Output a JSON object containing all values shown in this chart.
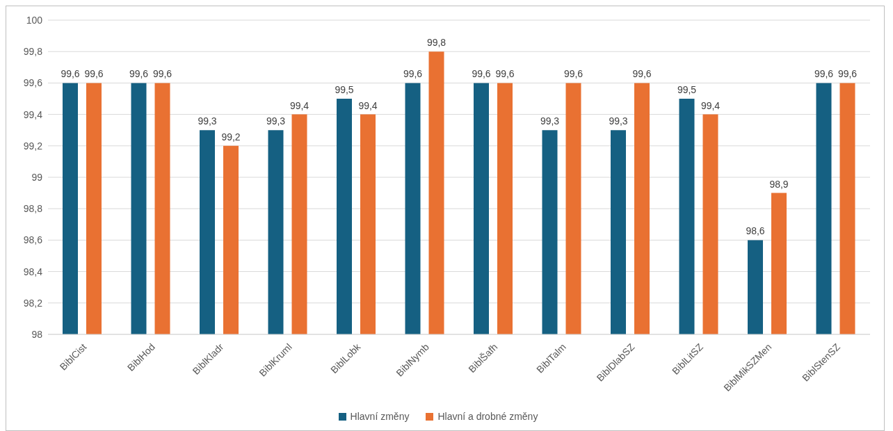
{
  "chart_data": {
    "type": "bar",
    "categories": [
      "BiblCist",
      "BiblHod",
      "BiblKladr",
      "BiblKruml",
      "BiblLobk",
      "BiblNymb",
      "BiblŠafh",
      "BiblTalm",
      "BiblDlabSZ",
      "BiblLitSZ",
      "BiblMikSZMen",
      "BiblStenSZ"
    ],
    "series": [
      {
        "name": "Hlavní změny",
        "color": "#156082",
        "values": [
          99.6,
          99.6,
          99.3,
          99.3,
          99.5,
          99.6,
          99.6,
          99.3,
          99.3,
          99.5,
          98.6,
          99.6
        ],
        "value_labels": [
          "99,6",
          "99,6",
          "99,3",
          "99,3",
          "99,5",
          "99,6",
          "99,6",
          "99,3",
          "99,3",
          "99,5",
          "98,6",
          "99,6"
        ]
      },
      {
        "name": "Hlavní a drobné změny",
        "color": "#e97132",
        "values": [
          99.6,
          99.6,
          99.2,
          99.4,
          99.4,
          99.8,
          99.6,
          99.6,
          99.6,
          99.4,
          98.9,
          99.6
        ],
        "value_labels": [
          "99,6",
          "99,6",
          "99,2",
          "99,4",
          "99,4",
          "99,8",
          "99,6",
          "99,6",
          "99,6",
          "99,4",
          "98,9",
          "99,6"
        ]
      }
    ],
    "ylim": [
      98,
      100
    ],
    "yticks": [
      98,
      {
        "value": 98.2,
        "label": "98,2"
      },
      {
        "value": 98.4,
        "label": "98,4"
      },
      {
        "value": 98.6,
        "label": "98,6"
      },
      {
        "value": 98.8,
        "label": "98,8"
      },
      99,
      {
        "value": 99.2,
        "label": "99,2"
      },
      {
        "value": 99.4,
        "label": "99,4"
      },
      {
        "value": 99.6,
        "label": "99,6"
      },
      {
        "value": 99.8,
        "label": "99,8"
      },
      100
    ],
    "grid": "y",
    "legend": "bottom"
  }
}
